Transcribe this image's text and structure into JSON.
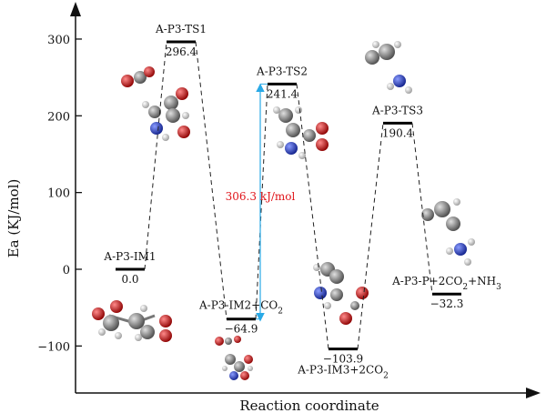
{
  "chart_data": {
    "type": "line",
    "xlabel": "Reaction coordinate",
    "ylabel": "Ea (KJ/mol)",
    "ylim": [
      -155,
      345
    ],
    "yticks": [
      300,
      200,
      100,
      0,
      -100
    ],
    "grid": false,
    "states": [
      {
        "label": "A-P3-IM1",
        "value": 0.0,
        "value_text": "0.0"
      },
      {
        "label": "A-P3-TS1",
        "value": 296.4,
        "value_text": "296.4"
      },
      {
        "label": "A-P3-IM2+CO",
        "label_sub": "2",
        "value": -64.9,
        "value_text": "−64.9"
      },
      {
        "label": "A-P3-TS2",
        "value": 241.4,
        "value_text": "241.4"
      },
      {
        "label": "A-P3-IM3+2CO",
        "label_sub": "2",
        "value": -103.9,
        "value_text": "−103.9"
      },
      {
        "label": "A-P3-TS3",
        "value": 190.4,
        "value_text": "190.4"
      },
      {
        "label": "A-P3-P+2CO",
        "label_sub": "2",
        "label_tail": "+NH",
        "label_sub2": "3",
        "value": -32.3,
        "value_text": "−32.3"
      }
    ],
    "barrier_annotation": {
      "text": "306.3 kJ/mol",
      "from_value": -64.9,
      "to_value": 241.4,
      "color": "#29a9e6",
      "text_color": "#e0151b"
    }
  },
  "colors": {
    "carbon": "#8a8a8a",
    "oxygen": "#d81a1a",
    "nitrogen": "#2a3fc0",
    "hydrogen": "#e6e6e6"
  }
}
